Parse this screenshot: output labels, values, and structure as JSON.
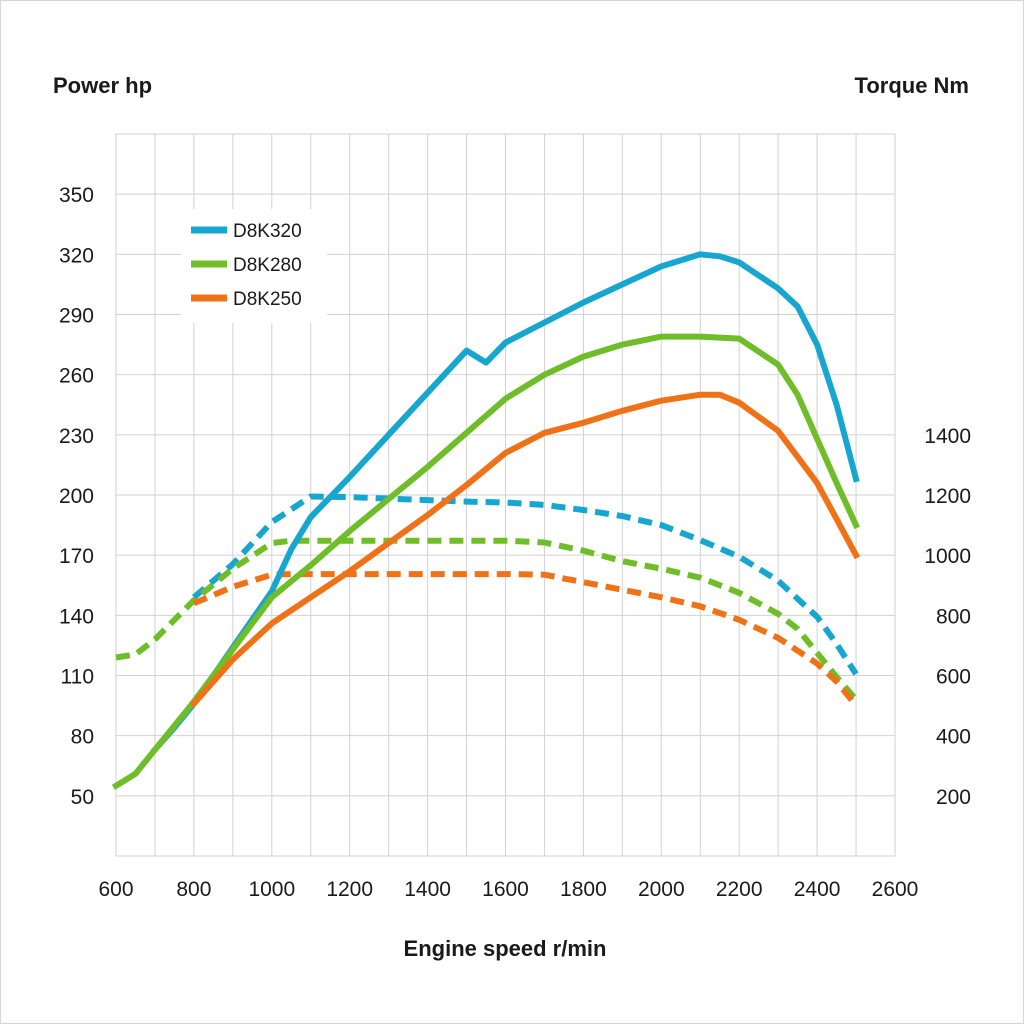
{
  "chart_data": {
    "type": "line",
    "left_axis_label": "Power hp",
    "right_axis_label": "Torque Nm",
    "xlabel": "Engine speed r/min",
    "xlim": [
      600,
      2600
    ],
    "x_ticks": [
      600,
      800,
      1000,
      1200,
      1400,
      1600,
      1800,
      2000,
      2200,
      2400,
      2600
    ],
    "left_ylim": [
      20,
      380
    ],
    "left_ticks": [
      50,
      80,
      110,
      140,
      170,
      200,
      230,
      260,
      290,
      320,
      350
    ],
    "right_ticks": [
      200,
      400,
      600,
      800,
      1000,
      1200,
      1400
    ],
    "right_scale_note": "right axis linear: 200 Nm aligns with 50 hp, 1400 Nm aligns with 230 hp",
    "grid": true,
    "legend_position": "top-left",
    "legend": [
      {
        "label": "D8K320",
        "color": "#17a6cf"
      },
      {
        "label": "D8K280",
        "color": "#6fbe29"
      },
      {
        "label": "D8K250",
        "color": "#ef7218"
      }
    ],
    "series": [
      {
        "name": "D8K320",
        "kind": "power",
        "axis": "left",
        "color": "#17a6cf",
        "points": [
          [
            700,
            73
          ],
          [
            750,
            84
          ],
          [
            800,
            96
          ],
          [
            900,
            124
          ],
          [
            1000,
            152
          ],
          [
            1050,
            173
          ],
          [
            1100,
            189
          ],
          [
            1200,
            209
          ],
          [
            1300,
            230
          ],
          [
            1400,
            251
          ],
          [
            1500,
            272
          ],
          [
            1550,
            266
          ],
          [
            1600,
            276
          ],
          [
            1700,
            286
          ],
          [
            1800,
            296
          ],
          [
            1900,
            305
          ],
          [
            2000,
            314
          ],
          [
            2100,
            320
          ],
          [
            2150,
            319
          ],
          [
            2200,
            316
          ],
          [
            2300,
            303
          ],
          [
            2350,
            294
          ],
          [
            2400,
            275
          ],
          [
            2450,
            245
          ],
          [
            2500,
            208
          ]
        ]
      },
      {
        "name": "D8K280",
        "kind": "power",
        "axis": "left",
        "color": "#6fbe29",
        "points": [
          [
            600,
            55
          ],
          [
            650,
            61
          ],
          [
            700,
            73
          ],
          [
            800,
            97
          ],
          [
            900,
            123
          ],
          [
            1000,
            149
          ],
          [
            1100,
            165
          ],
          [
            1200,
            182
          ],
          [
            1300,
            198
          ],
          [
            1400,
            214
          ],
          [
            1500,
            231
          ],
          [
            1600,
            248
          ],
          [
            1700,
            260
          ],
          [
            1800,
            269
          ],
          [
            1900,
            275
          ],
          [
            2000,
            279
          ],
          [
            2100,
            279
          ],
          [
            2200,
            278
          ],
          [
            2300,
            265
          ],
          [
            2350,
            250
          ],
          [
            2400,
            228
          ],
          [
            2450,
            206
          ],
          [
            2500,
            185
          ]
        ]
      },
      {
        "name": "D8K250",
        "kind": "power",
        "axis": "left",
        "color": "#ef7218",
        "points": [
          [
            800,
            96
          ],
          [
            900,
            118
          ],
          [
            1000,
            136
          ],
          [
            1100,
            149
          ],
          [
            1200,
            162
          ],
          [
            1300,
            176
          ],
          [
            1400,
            190
          ],
          [
            1500,
            205
          ],
          [
            1600,
            221
          ],
          [
            1700,
            231
          ],
          [
            1800,
            236
          ],
          [
            1900,
            242
          ],
          [
            2000,
            247
          ],
          [
            2100,
            250
          ],
          [
            2150,
            250
          ],
          [
            2200,
            246
          ],
          [
            2300,
            232
          ],
          [
            2400,
            206
          ],
          [
            2450,
            188
          ],
          [
            2500,
            170
          ]
        ]
      },
      {
        "name": "D8K320",
        "kind": "torque",
        "axis": "right",
        "color": "#17a6cf",
        "points": [
          [
            800,
            860
          ],
          [
            900,
            970
          ],
          [
            1000,
            1110
          ],
          [
            1100,
            1195
          ],
          [
            1200,
            1193
          ],
          [
            1300,
            1188
          ],
          [
            1400,
            1183
          ],
          [
            1500,
            1178
          ],
          [
            1600,
            1175
          ],
          [
            1700,
            1167
          ],
          [
            1800,
            1150
          ],
          [
            1900,
            1130
          ],
          [
            2000,
            1100
          ],
          [
            2100,
            1050
          ],
          [
            2200,
            995
          ],
          [
            2300,
            915
          ],
          [
            2400,
            795
          ],
          [
            2450,
            705
          ],
          [
            2500,
            605
          ]
        ]
      },
      {
        "name": "D8K280",
        "kind": "torque",
        "axis": "right",
        "color": "#6fbe29",
        "points": [
          [
            600,
            660
          ],
          [
            650,
            670
          ],
          [
            700,
            720
          ],
          [
            800,
            850
          ],
          [
            900,
            955
          ],
          [
            1000,
            1040
          ],
          [
            1050,
            1048
          ],
          [
            1200,
            1048
          ],
          [
            1400,
            1048
          ],
          [
            1600,
            1048
          ],
          [
            1700,
            1042
          ],
          [
            1800,
            1015
          ],
          [
            1900,
            980
          ],
          [
            2000,
            955
          ],
          [
            2100,
            925
          ],
          [
            2200,
            875
          ],
          [
            2300,
            805
          ],
          [
            2350,
            755
          ],
          [
            2400,
            675
          ],
          [
            2450,
            595
          ],
          [
            2500,
            520
          ]
        ]
      },
      {
        "name": "D8K250",
        "kind": "torque",
        "axis": "right",
        "color": "#ef7218",
        "points": [
          [
            800,
            840
          ],
          [
            900,
            895
          ],
          [
            1000,
            935
          ],
          [
            1050,
            937
          ],
          [
            1200,
            937
          ],
          [
            1400,
            937
          ],
          [
            1600,
            937
          ],
          [
            1700,
            935
          ],
          [
            1800,
            910
          ],
          [
            1900,
            885
          ],
          [
            2000,
            860
          ],
          [
            2100,
            830
          ],
          [
            2200,
            785
          ],
          [
            2300,
            725
          ],
          [
            2400,
            640
          ],
          [
            2450,
            580
          ],
          [
            2500,
            500
          ]
        ]
      }
    ]
  }
}
